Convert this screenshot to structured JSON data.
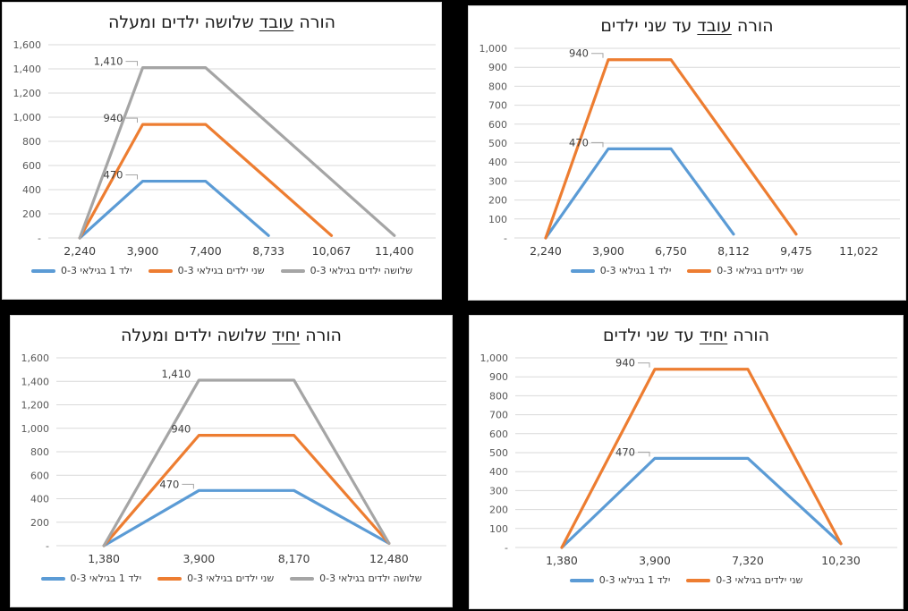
{
  "canvas": {
    "background": "#000000",
    "panel_background": "#FFFFFF"
  },
  "colors": {
    "grid": "#D9D9D9",
    "axis_text": "#595959",
    "x_text": "#3d3d3d",
    "title_text": "#1c1c1c",
    "data_label": "#404040",
    "leader": "#A6A6A6",
    "series_blue": "#5B9BD5",
    "series_orange": "#ED7D31",
    "series_gray": "#A5A5A5"
  },
  "chart_data": [
    {
      "type": "line",
      "title": "הורה עובד שלושה ילדים ומעלה",
      "title_pre": "הורה ",
      "title_word": "עובד",
      "title_post": " שלושה ילדים ומעלה",
      "xlabel": "",
      "ylabel": "",
      "x_categories": [
        "2,240",
        "3,900",
        "7,400",
        "8,733",
        "10,067",
        "11,400"
      ],
      "ylim": [
        0,
        1600
      ],
      "y_step": 200,
      "y_tick_labels": [
        "-",
        "200",
        "400",
        "600",
        "800",
        "1,000",
        "1,200",
        "1,400",
        "1,600"
      ],
      "grid": true,
      "legend_position": "bottom",
      "series": [
        {
          "name": "ילד 1 בגילאי 0-3",
          "color": "#5B9BD5",
          "values": [
            0,
            470,
            470,
            20,
            null,
            null
          ]
        },
        {
          "name": "שני ילדים בגילאי 0-3",
          "color": "#ED7D31",
          "values": [
            0,
            940,
            940,
            null,
            20,
            null
          ]
        },
        {
          "name": "שלושה ילדים בגילאי 0-3",
          "color": "#A5A5A5",
          "values": [
            0,
            1410,
            1410,
            null,
            null,
            20
          ]
        }
      ],
      "data_labels": [
        {
          "text": "470",
          "series": 0,
          "cat_index": 1,
          "value": 470,
          "leader": true
        },
        {
          "text": "940",
          "series": 1,
          "cat_index": 1,
          "value": 940,
          "leader": true
        },
        {
          "text": "1,410",
          "series": 2,
          "cat_index": 1,
          "value": 1410,
          "leader": true
        }
      ]
    },
    {
      "type": "line",
      "title": "הורה עובד עד שני ילדים",
      "title_pre": "הורה ",
      "title_word": "עובד",
      "title_post": " עד שני ילדים",
      "xlabel": "",
      "ylabel": "",
      "x_categories": [
        "2,240",
        "3,900",
        "6,750",
        "8,112",
        "9,475",
        "11,022"
      ],
      "ylim": [
        0,
        1000
      ],
      "y_step": 100,
      "y_tick_labels": [
        "-",
        "100",
        "200",
        "300",
        "400",
        "500",
        "600",
        "700",
        "800",
        "900",
        "1,000"
      ],
      "grid": true,
      "legend_position": "bottom",
      "series": [
        {
          "name": "ילד 1 בגילאי 0-3",
          "color": "#5B9BD5",
          "values": [
            0,
            470,
            470,
            20,
            null,
            null
          ]
        },
        {
          "name": "שני ילדים בגילאי 0-3",
          "color": "#ED7D31",
          "values": [
            0,
            940,
            940,
            null,
            20,
            null
          ]
        }
      ],
      "data_labels": [
        {
          "text": "470",
          "series": 0,
          "cat_index": 1,
          "value": 470,
          "leader": true
        },
        {
          "text": "940",
          "series": 1,
          "cat_index": 1,
          "value": 940,
          "leader": true
        }
      ]
    },
    {
      "type": "line",
      "title": "הורה יחיד שלושה ילדים ומעלה",
      "title_pre": "הורה ",
      "title_word": "יחיד",
      "title_post": " שלושה ילדים ומעלה",
      "xlabel": "",
      "ylabel": "",
      "x_categories": [
        "1,380",
        "3,900",
        "8,170",
        "12,480"
      ],
      "ylim": [
        0,
        1600
      ],
      "y_step": 200,
      "y_tick_labels": [
        "-",
        "200",
        "400",
        "600",
        "800",
        "1,000",
        "1,200",
        "1,400",
        "1,600"
      ],
      "grid": true,
      "legend_position": "bottom",
      "series": [
        {
          "name": "ילד 1 בגילאי 0-3",
          "color": "#5B9BD5",
          "values": [
            0,
            470,
            470,
            20
          ]
        },
        {
          "name": "שני ילדים בגילאי 0-3",
          "color": "#ED7D31",
          "values": [
            0,
            940,
            940,
            20
          ]
        },
        {
          "name": "שלושה ילדים בגילאי 0-3",
          "color": "#A5A5A5",
          "values": [
            0,
            1410,
            1410,
            20
          ]
        }
      ],
      "data_labels": [
        {
          "text": "470",
          "series": 0,
          "cat_index": 1,
          "value": 470,
          "leader": true
        },
        {
          "text": "940",
          "series": 1,
          "cat_index": 1,
          "value": 940,
          "leader": false
        },
        {
          "text": "1,410",
          "series": 2,
          "cat_index": 1,
          "value": 1410,
          "leader": false
        }
      ]
    },
    {
      "type": "line",
      "title": "הורה יחיד עד שני ילדים",
      "title_pre": "הורה ",
      "title_word": "יחיד",
      "title_post": " עד שני ילדים",
      "xlabel": "",
      "ylabel": "",
      "x_categories": [
        "1,380",
        "3,900",
        "7,320",
        "10,230"
      ],
      "ylim": [
        0,
        1000
      ],
      "y_step": 100,
      "y_tick_labels": [
        "-",
        "100",
        "200",
        "300",
        "400",
        "500",
        "600",
        "700",
        "800",
        "900",
        "1,000"
      ],
      "grid": true,
      "legend_position": "bottom",
      "series": [
        {
          "name": "ילד 1 בגילאי 0-3",
          "color": "#5B9BD5",
          "values": [
            0,
            470,
            470,
            20
          ]
        },
        {
          "name": "שני ילדים בגילאי 0-3",
          "color": "#ED7D31",
          "values": [
            0,
            940,
            940,
            20
          ]
        }
      ],
      "data_labels": [
        {
          "text": "470",
          "series": 0,
          "cat_index": 1,
          "value": 470,
          "leader": true
        },
        {
          "text": "940",
          "series": 1,
          "cat_index": 1,
          "value": 940,
          "leader": true
        }
      ]
    }
  ]
}
